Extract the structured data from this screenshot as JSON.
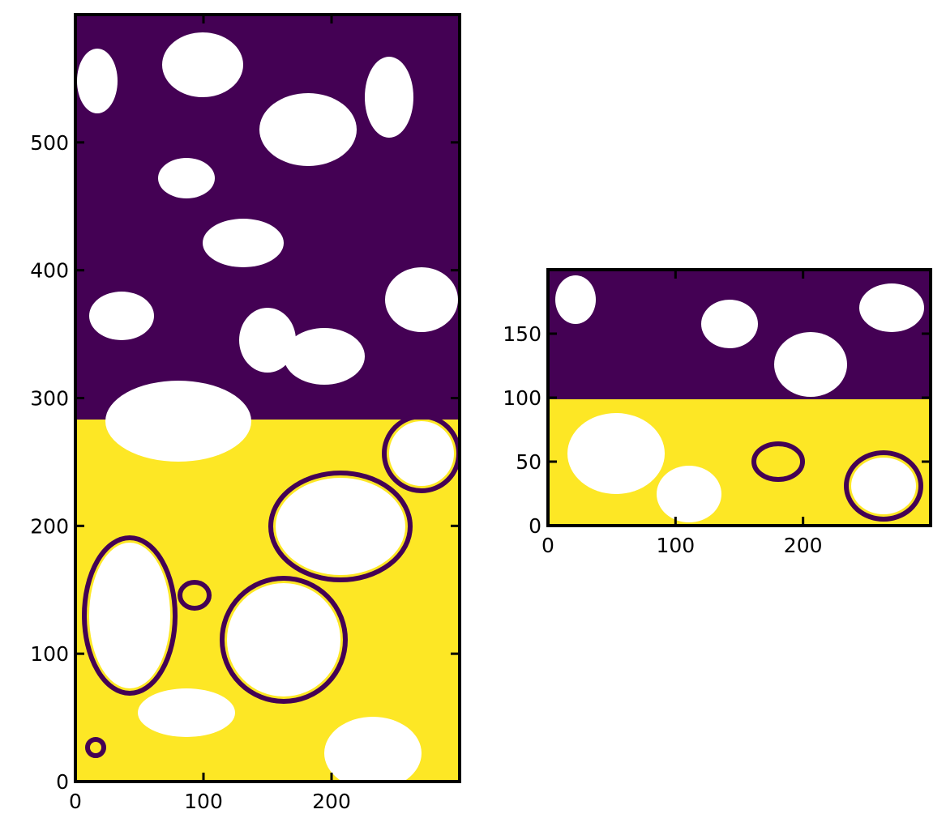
{
  "chart_data": [
    {
      "type": "image",
      "xlim": [
        0,
        300
      ],
      "ylim": [
        0,
        600
      ],
      "xticks": [
        0,
        100,
        200
      ],
      "yticks": [
        0,
        100,
        200,
        300,
        400,
        500
      ]
    },
    {
      "type": "image",
      "xlim": [
        0,
        300
      ],
      "ylim": [
        0,
        200
      ],
      "xticks": [
        0,
        100,
        200
      ],
      "yticks": [
        0,
        50,
        100,
        150
      ]
    }
  ]
}
